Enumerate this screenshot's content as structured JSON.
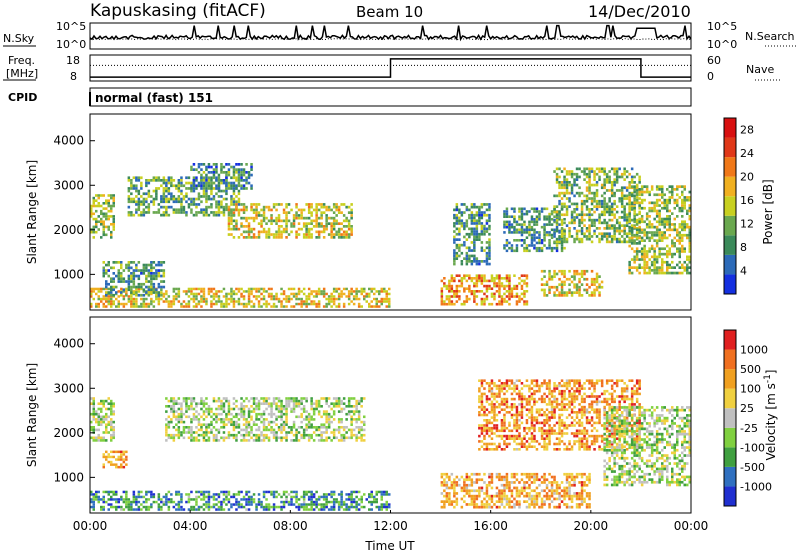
{
  "header": {
    "station": "Kapuskasing (fitACF)",
    "beam": "Beam 10",
    "date": "14/Dec/2010"
  },
  "noise_panel": {
    "left_label": "N.Sky",
    "left_ticks": [
      "10^5",
      "10^0"
    ],
    "right_ticks": [
      "10^5",
      "10^0"
    ],
    "right_label": "N.Search"
  },
  "freq_panel": {
    "left_label_line1": "Freq.",
    "left_label_line2": "[MHz]",
    "left_ticks": [
      "18",
      "8"
    ],
    "right_ticks": [
      "60",
      "0"
    ],
    "right_label": "Nave",
    "freq_step": {
      "t0": 0,
      "t1": 12,
      "t2": 22,
      "t3": 24,
      "low": 0.15,
      "high": 0.85
    }
  },
  "cpid": {
    "label": "CPID",
    "value": "normal (fast) 151"
  },
  "x_axis": {
    "ticks": [
      "00:00",
      "04:00",
      "08:00",
      "12:00",
      "16:00",
      "20:00",
      "00:00"
    ],
    "label": "Time UT",
    "range_hours": [
      0,
      24
    ]
  },
  "colors": {
    "power": [
      "#1430e0",
      "#2c6ab8",
      "#3b8a5a",
      "#6aa84f",
      "#c8d020",
      "#f0b020",
      "#f07818",
      "#e03818",
      "#d81010"
    ],
    "velocity": [
      "#2030d0",
      "#3070c0",
      "#40a040",
      "#80d040",
      "#c0c0c0",
      "#f0d040",
      "#f0a020",
      "#f07020",
      "#e02020"
    ]
  },
  "chart_data": [
    {
      "type": "heatmap",
      "title": "",
      "ylabel": "Slant Range [km]",
      "xlabel": "",
      "y_ticks": [
        "1000",
        "2000",
        "3000",
        "4000"
      ],
      "ylim": [
        200,
        4600
      ],
      "xlim": [
        0,
        24
      ],
      "colorbar": {
        "label": "Power [dB]",
        "ticks": [
          "4",
          "8",
          "12",
          "16",
          "20",
          "24",
          "28"
        ],
        "range": [
          0,
          30
        ]
      },
      "regions": [
        {
          "t0": 0.0,
          "t1": 1.0,
          "r0": 1800,
          "r1": 2800,
          "level": 0.45
        },
        {
          "t0": 1.5,
          "t1": 6.0,
          "r0": 2300,
          "r1": 3200,
          "level": 0.35
        },
        {
          "t0": 5.5,
          "t1": 10.5,
          "r0": 1800,
          "r1": 2600,
          "level": 0.5
        },
        {
          "t0": 4.0,
          "t1": 6.5,
          "r0": 2900,
          "r1": 3500,
          "level": 0.25
        },
        {
          "t0": 0.0,
          "t1": 12.0,
          "r0": 250,
          "r1": 700,
          "level": 0.55
        },
        {
          "t0": 0.5,
          "t1": 3.0,
          "r0": 500,
          "r1": 1300,
          "level": 0.3
        },
        {
          "t0": 14.0,
          "t1": 17.5,
          "r0": 300,
          "r1": 1000,
          "level": 0.65
        },
        {
          "t0": 14.5,
          "t1": 16.0,
          "r0": 1200,
          "r1": 2600,
          "level": 0.3
        },
        {
          "t0": 16.5,
          "t1": 19.0,
          "r0": 1500,
          "r1": 2500,
          "level": 0.3
        },
        {
          "t0": 18.5,
          "t1": 22.0,
          "r0": 1700,
          "r1": 3400,
          "level": 0.4
        },
        {
          "t0": 18.0,
          "t1": 20.5,
          "r0": 500,
          "r1": 1100,
          "level": 0.55
        },
        {
          "t0": 21.5,
          "t1": 24.0,
          "r0": 1000,
          "r1": 3000,
          "level": 0.45
        }
      ]
    },
    {
      "type": "heatmap",
      "title": "",
      "ylabel": "Slant Range [km]",
      "xlabel": "Time UT",
      "y_ticks": [
        "1000",
        "2000",
        "3000",
        "4000"
      ],
      "ylim": [
        200,
        4600
      ],
      "xlim": [
        0,
        24
      ],
      "colorbar": {
        "label": "Velocity [m s^-1]",
        "ticks": [
          "1000",
          "500",
          "100",
          "25",
          "-25",
          "-100",
          "-500",
          "-1000"
        ]
      },
      "regions": [
        {
          "t0": 0.0,
          "t1": 1.0,
          "r0": 1800,
          "r1": 2800,
          "level": 0.45
        },
        {
          "t0": 3.0,
          "t1": 11.0,
          "r0": 1800,
          "r1": 2800,
          "level": 0.45
        },
        {
          "t0": 0.0,
          "t1": 12.0,
          "r0": 250,
          "r1": 700,
          "level": 0.25
        },
        {
          "t0": 0.5,
          "t1": 1.5,
          "r0": 1200,
          "r1": 1600,
          "level": 0.75
        },
        {
          "t0": 14.0,
          "t1": 20.0,
          "r0": 300,
          "r1": 1100,
          "level": 0.7
        },
        {
          "t0": 15.5,
          "t1": 22.0,
          "r0": 1600,
          "r1": 3200,
          "level": 0.75
        },
        {
          "t0": 20.5,
          "t1": 24.0,
          "r0": 800,
          "r1": 2600,
          "level": 0.45
        }
      ]
    }
  ]
}
